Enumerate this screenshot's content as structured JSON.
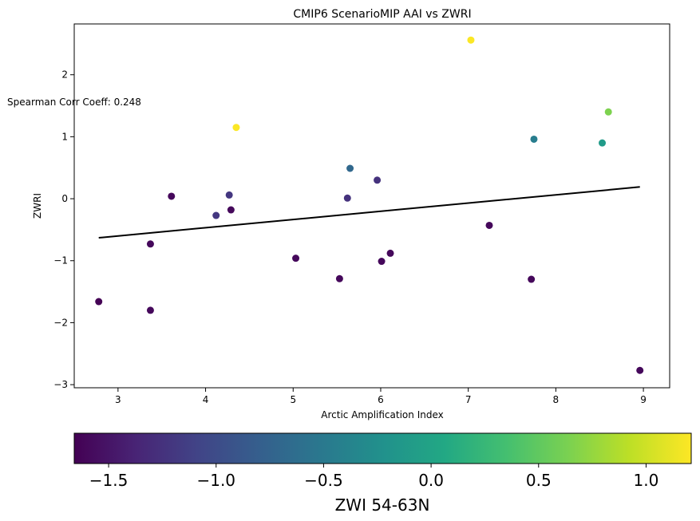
{
  "chart_data": {
    "type": "scatter",
    "title": "CMIP6 ScenarioMIP AAI vs ZWRI",
    "xlabel": "Arctic Amplification Index",
    "ylabel": "ZWRI",
    "xlim": [
      2.5,
      9.3
    ],
    "ylim": [
      -3.05,
      2.82
    ],
    "xticks": [
      3,
      4,
      5,
      6,
      7,
      8,
      9
    ],
    "yticks": [
      -3,
      -2,
      -1,
      0,
      1,
      2
    ],
    "xtick_labels": [
      "3",
      "4",
      "5",
      "6",
      "7",
      "8",
      "9"
    ],
    "ytick_labels": [
      "−3",
      "−2",
      "−1",
      "0",
      "1",
      "2"
    ],
    "annotation": "Spearman Corr Coeff: 0.248",
    "points": [
      {
        "x": 2.78,
        "y": -1.66,
        "c": -1.65
      },
      {
        "x": 3.37,
        "y": -0.73,
        "c": -1.6
      },
      {
        "x": 3.37,
        "y": -1.8,
        "c": -1.6
      },
      {
        "x": 3.61,
        "y": 0.04,
        "c": -1.6
      },
      {
        "x": 4.12,
        "y": -0.27,
        "c": -1.2
      },
      {
        "x": 4.27,
        "y": 0.06,
        "c": -1.2
      },
      {
        "x": 4.29,
        "y": -0.18,
        "c": -1.6
      },
      {
        "x": 4.35,
        "y": 1.15,
        "c": 1.2
      },
      {
        "x": 5.03,
        "y": -0.96,
        "c": -1.6
      },
      {
        "x": 5.53,
        "y": -1.29,
        "c": -1.6
      },
      {
        "x": 5.62,
        "y": 0.01,
        "c": -1.25
      },
      {
        "x": 5.65,
        "y": 0.49,
        "c": -0.7
      },
      {
        "x": 5.96,
        "y": 0.3,
        "c": -1.25
      },
      {
        "x": 6.01,
        "y": -1.01,
        "c": -1.6
      },
      {
        "x": 6.11,
        "y": -0.88,
        "c": -1.6
      },
      {
        "x": 7.03,
        "y": 2.56,
        "c": 1.2
      },
      {
        "x": 7.24,
        "y": -0.43,
        "c": -1.6
      },
      {
        "x": 7.72,
        "y": -1.3,
        "c": -1.6
      },
      {
        "x": 7.75,
        "y": 0.96,
        "c": -0.45
      },
      {
        "x": 8.53,
        "y": 0.9,
        "c": -0.1
      },
      {
        "x": 8.6,
        "y": 1.4,
        "c": 0.65
      },
      {
        "x": 8.96,
        "y": -2.77,
        "c": -1.6
      }
    ],
    "fit_line": {
      "x": [
        2.78,
        8.96
      ],
      "y": [
        -0.63,
        0.19
      ]
    },
    "colorbar": {
      "label": "ZWI 54-63N",
      "colormap": "viridis",
      "range": [
        -1.66,
        1.21
      ],
      "ticks": [
        -1.5,
        -1.0,
        -0.5,
        0.0,
        0.5,
        1.0
      ],
      "tick_labels": [
        "−1.5",
        "−1.0",
        "−0.5",
        "0.0",
        "0.5",
        "1.0"
      ]
    },
    "grid": false,
    "legend": "none"
  }
}
